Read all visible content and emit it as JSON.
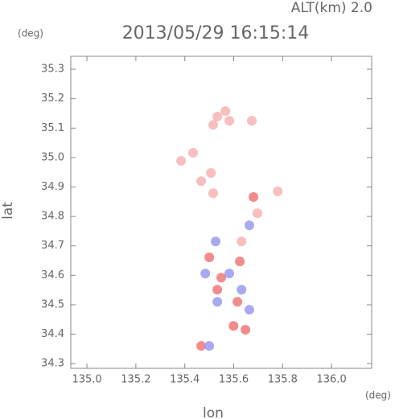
{
  "chart_data": {
    "type": "scatter",
    "title": "2013/05/29 16:15:14",
    "subtitle": "ALT(km) 2.0",
    "y_unit": "(deg)",
    "x_unit": "(deg)",
    "xlabel": "lon",
    "ylabel": "lat",
    "xlim": [
      134.934,
      136.164
    ],
    "ylim": [
      34.284,
      35.344
    ],
    "xticks": [
      {
        "value": 135,
        "label": "135.0"
      },
      135.2,
      135.4,
      135.6,
      135.8,
      {
        "value": 136,
        "label": "136.0"
      }
    ],
    "yticks": [
      34.3,
      34.4,
      34.5,
      34.6,
      34.7,
      34.8,
      34.9,
      {
        "value": 35,
        "label": "35.0"
      },
      35.1,
      35.2,
      35.3
    ],
    "series": [
      {
        "color": "#f6b4b4",
        "x": [
          135.533,
          135.566,
          135.516,
          135.582,
          135.674,
          135.434,
          135.385,
          135.507,
          135.516,
          135.467,
          135.697,
          135.78,
          135.632
        ],
        "y": [
          35.139,
          35.158,
          35.111,
          35.125,
          35.125,
          35.016,
          34.989,
          34.948,
          34.879,
          34.92,
          34.811,
          34.885,
          34.715
        ]
      },
      {
        "color": "#f07878",
        "x": [
          135.625,
          135.549,
          135.5,
          135.615,
          135.599,
          135.467,
          135.648,
          135.533,
          135.681
        ],
        "y": [
          34.647,
          34.592,
          34.661,
          34.51,
          34.428,
          34.36,
          34.415,
          34.551,
          34.866
        ]
      },
      {
        "color": "#9a9af0",
        "x": [
          135.526,
          135.582,
          135.664,
          135.533,
          135.664,
          135.5,
          135.484,
          135.632
        ],
        "y": [
          34.715,
          34.606,
          34.77,
          34.51,
          34.483,
          34.36,
          34.606,
          34.551
        ]
      }
    ]
  }
}
